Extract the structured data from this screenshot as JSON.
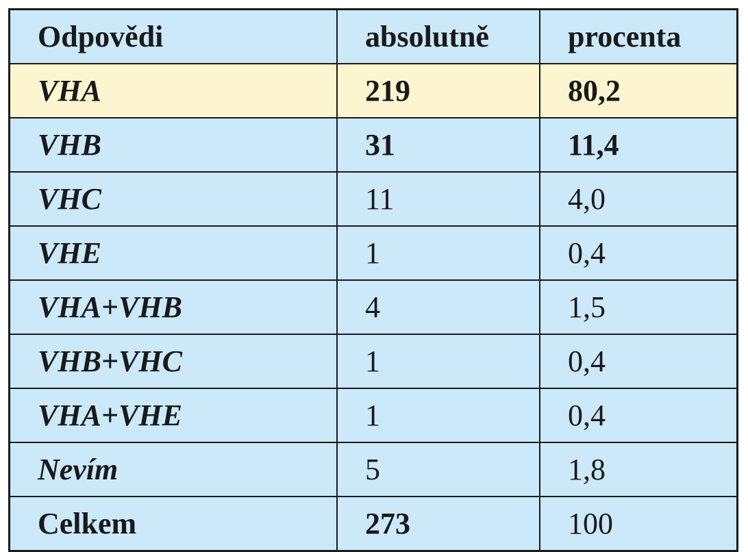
{
  "table": {
    "header": [
      "Odpovědi",
      "absolutně",
      "procenta"
    ],
    "rows": [
      [
        "VHA",
        "219",
        "80,2"
      ],
      [
        "VHB",
        "31",
        "11,4"
      ],
      [
        "VHC",
        "11",
        "4,0"
      ],
      [
        "VHE",
        "1",
        "0,4"
      ],
      [
        "VHA+VHB",
        "4",
        "1,5"
      ],
      [
        "VHB+VHC",
        "1",
        "0,4"
      ],
      [
        "VHA+VHE",
        "1",
        "0,4"
      ],
      [
        "Nevím",
        "5",
        "1,8"
      ],
      [
        "Celkem",
        "273",
        "100"
      ]
    ]
  }
}
